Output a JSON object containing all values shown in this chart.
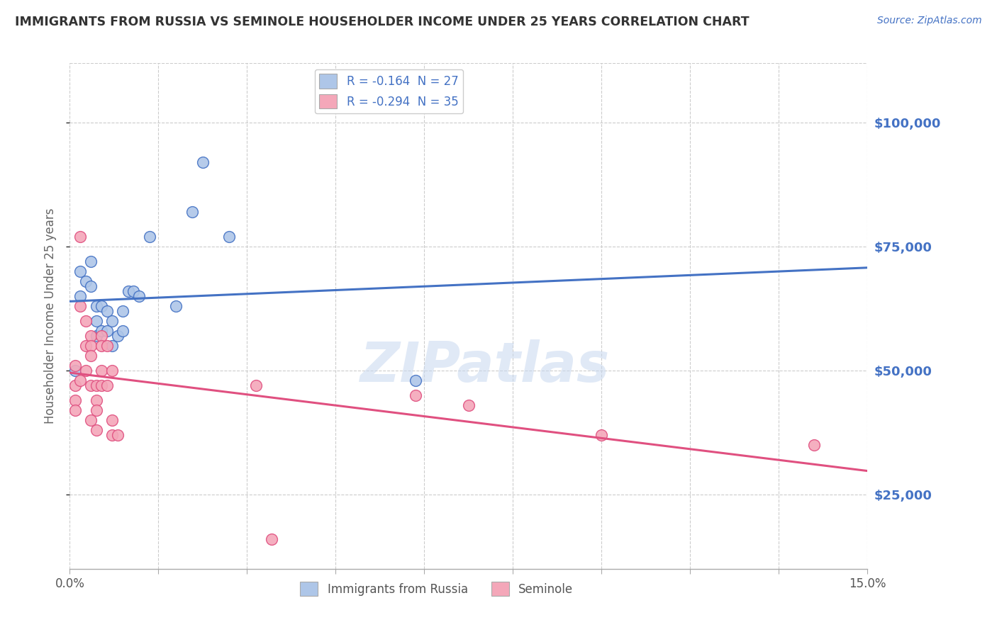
{
  "title": "IMMIGRANTS FROM RUSSIA VS SEMINOLE HOUSEHOLDER INCOME UNDER 25 YEARS CORRELATION CHART",
  "source": "Source: ZipAtlas.com",
  "ylabel": "Householder Income Under 25 years",
  "xlim": [
    0.0,
    0.15
  ],
  "ylim": [
    10000,
    112000
  ],
  "yticks": [
    25000,
    50000,
    75000,
    100000
  ],
  "ytick_labels": [
    "$25,000",
    "$50,000",
    "$75,000",
    "$100,000"
  ],
  "legend_items": [
    {
      "label": "R = -0.164  N = 27",
      "color": "#aec6e8"
    },
    {
      "label": "R = -0.294  N = 35",
      "color": "#f4a7b9"
    }
  ],
  "legend_bottom": [
    {
      "label": "Immigrants from Russia",
      "color": "#aec6e8"
    },
    {
      "label": "Seminole",
      "color": "#f4a7b9"
    }
  ],
  "blue_points": [
    [
      0.001,
      50000
    ],
    [
      0.002,
      70000
    ],
    [
      0.002,
      65000
    ],
    [
      0.003,
      68000
    ],
    [
      0.004,
      72000
    ],
    [
      0.004,
      67000
    ],
    [
      0.005,
      63000
    ],
    [
      0.005,
      60000
    ],
    [
      0.005,
      57000
    ],
    [
      0.006,
      63000
    ],
    [
      0.006,
      58000
    ],
    [
      0.007,
      62000
    ],
    [
      0.007,
      58000
    ],
    [
      0.008,
      60000
    ],
    [
      0.008,
      55000
    ],
    [
      0.009,
      57000
    ],
    [
      0.01,
      62000
    ],
    [
      0.01,
      58000
    ],
    [
      0.011,
      66000
    ],
    [
      0.012,
      66000
    ],
    [
      0.013,
      65000
    ],
    [
      0.015,
      77000
    ],
    [
      0.02,
      63000
    ],
    [
      0.023,
      82000
    ],
    [
      0.025,
      92000
    ],
    [
      0.03,
      77000
    ],
    [
      0.065,
      48000
    ]
  ],
  "pink_points": [
    [
      0.001,
      51000
    ],
    [
      0.001,
      47000
    ],
    [
      0.001,
      44000
    ],
    [
      0.001,
      42000
    ],
    [
      0.002,
      77000
    ],
    [
      0.002,
      63000
    ],
    [
      0.002,
      48000
    ],
    [
      0.003,
      60000
    ],
    [
      0.003,
      55000
    ],
    [
      0.003,
      50000
    ],
    [
      0.004,
      57000
    ],
    [
      0.004,
      55000
    ],
    [
      0.004,
      53000
    ],
    [
      0.004,
      47000
    ],
    [
      0.004,
      40000
    ],
    [
      0.005,
      47000
    ],
    [
      0.005,
      44000
    ],
    [
      0.005,
      42000
    ],
    [
      0.005,
      38000
    ],
    [
      0.006,
      57000
    ],
    [
      0.006,
      55000
    ],
    [
      0.006,
      50000
    ],
    [
      0.006,
      47000
    ],
    [
      0.007,
      55000
    ],
    [
      0.007,
      47000
    ],
    [
      0.008,
      50000
    ],
    [
      0.008,
      40000
    ],
    [
      0.008,
      37000
    ],
    [
      0.009,
      37000
    ],
    [
      0.035,
      47000
    ],
    [
      0.038,
      16000
    ],
    [
      0.065,
      45000
    ],
    [
      0.075,
      43000
    ],
    [
      0.1,
      37000
    ],
    [
      0.14,
      35000
    ]
  ],
  "blue_line_color": "#4472c4",
  "pink_line_color": "#e05080",
  "blue_scatter_color": "#aec6e8",
  "pink_scatter_color": "#f4a7b9",
  "watermark": "ZIPatlas",
  "background_color": "#ffffff",
  "grid_color": "#cccccc",
  "title_color": "#333333",
  "axis_label_color": "#666666",
  "right_tick_color": "#4472c4"
}
